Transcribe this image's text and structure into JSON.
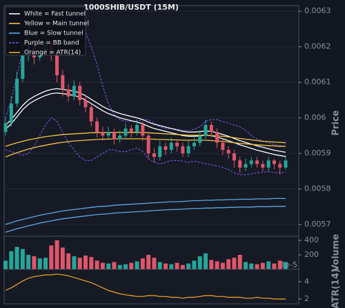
{
  "chart_data": [
    {
      "type": "candlestick",
      "title": "1000SHIB/USDT (15M)",
      "ylabel": "Price",
      "ylim": [
        0.005667,
        0.006316
      ],
      "yticks": [
        0.0057,
        0.0058,
        0.0059,
        0.006,
        0.0061,
        0.0062,
        0.0063
      ],
      "grid": true,
      "up_color": "#26a69a",
      "down_color": "#e0566a",
      "open": [
        0.00596,
        0.005985,
        0.00604,
        0.00611,
        0.00618,
        0.0062,
        0.00617,
        0.00619,
        0.00621,
        0.00618,
        0.00612,
        0.00608,
        0.00606,
        0.00609,
        0.00605,
        0.00603,
        0.00599,
        0.00596,
        0.00595,
        0.00596,
        0.00594,
        0.00595,
        0.00597,
        0.00596,
        0.00598,
        0.00595,
        0.0059,
        0.00589,
        0.00592,
        0.00591,
        0.00593,
        0.00592,
        0.0059,
        0.00592,
        0.00593,
        0.00595,
        0.00598,
        0.00596,
        0.00593,
        0.00591,
        0.0059,
        0.00588,
        0.00586,
        0.00587,
        0.00588,
        0.00587,
        0.00586,
        0.00588,
        0.00587,
        0.00586
      ],
      "high": [
        0.006,
        0.00606,
        0.00613,
        0.00621,
        0.00623,
        0.006215,
        0.006205,
        0.00624,
        0.00622,
        0.00619,
        0.006135,
        0.006095,
        0.006105,
        0.0061,
        0.006065,
        0.00604,
        0.006,
        0.005975,
        0.005975,
        0.00597,
        0.005965,
        0.005985,
        0.00598,
        0.005995,
        0.00599,
        0.00596,
        0.005915,
        0.005935,
        0.00593,
        0.005945,
        0.00594,
        0.00593,
        0.005935,
        0.005945,
        0.005965,
        0.005995,
        0.00599,
        0.00597,
        0.00594,
        0.00592,
        0.00591,
        0.00589,
        0.005885,
        0.00589,
        0.00589,
        0.00588,
        0.00589,
        0.005885,
        0.00588,
        0.005895
      ],
      "low": [
        0.00595,
        0.005975,
        0.00603,
        0.0061,
        0.00616,
        0.00615,
        0.00616,
        0.00618,
        0.00616,
        0.0061,
        0.00606,
        0.006045,
        0.00605,
        0.006035,
        0.006015,
        0.005975,
        0.005945,
        0.005935,
        0.00594,
        0.005925,
        0.00593,
        0.00594,
        0.005945,
        0.00595,
        0.005935,
        0.005885,
        0.005875,
        0.00588,
        0.005895,
        0.0059,
        0.005905,
        0.00589,
        0.00589,
        0.00591,
        0.00592,
        0.00594,
        0.005945,
        0.005915,
        0.005895,
        0.005885,
        0.00586,
        0.005845,
        0.00585,
        0.00586,
        0.00586,
        0.00585,
        0.00585,
        0.005855,
        0.00584,
        0.005855
      ],
      "close": [
        0.005985,
        0.00604,
        0.00611,
        0.00618,
        0.0062,
        0.00617,
        0.00619,
        0.00621,
        0.00618,
        0.00612,
        0.00608,
        0.00606,
        0.00609,
        0.00605,
        0.00603,
        0.00599,
        0.00596,
        0.00595,
        0.00596,
        0.00594,
        0.00595,
        0.00597,
        0.00596,
        0.00598,
        0.00595,
        0.0059,
        0.00589,
        0.00592,
        0.00591,
        0.00593,
        0.00592,
        0.0059,
        0.00592,
        0.00593,
        0.00595,
        0.00598,
        0.00596,
        0.00593,
        0.00591,
        0.0059,
        0.00588,
        0.00586,
        0.00587,
        0.00588,
        0.00587,
        0.00586,
        0.00588,
        0.00587,
        0.00586,
        0.00588
      ],
      "tunnels": [
        {
          "name": "White = Fast tunnel",
          "color": "#ffffff",
          "upper": [
            0.00598,
            0.005995,
            0.006015,
            0.006035,
            0.00605,
            0.00606,
            0.006068,
            0.006075,
            0.00608,
            0.006082,
            0.00608,
            0.006078,
            0.006075,
            0.00607,
            0.006062,
            0.006052,
            0.006042,
            0.006032,
            0.006024,
            0.006018,
            0.006012,
            0.006008,
            0.006004,
            0.006,
            0.005995,
            0.005988,
            0.005982,
            0.005978,
            0.005974,
            0.00597,
            0.005966,
            0.005962,
            0.00596,
            0.00596,
            0.005961,
            0.005963,
            0.005962,
            0.005958,
            0.005953,
            0.005948,
            0.005942,
            0.005936,
            0.005931,
            0.005926,
            0.005921,
            0.005917,
            0.005913,
            0.005909,
            0.005906,
            0.005903
          ],
          "lower": [
            0.005968,
            0.005983,
            0.006003,
            0.006023,
            0.006038,
            0.006048,
            0.006056,
            0.006063,
            0.006068,
            0.00607,
            0.006068,
            0.006066,
            0.006063,
            0.006058,
            0.00605,
            0.00604,
            0.00603,
            0.00602,
            0.006012,
            0.006006,
            0.006,
            0.005996,
            0.005992,
            0.005988,
            0.005983,
            0.005976,
            0.00597,
            0.005966,
            0.005962,
            0.005958,
            0.005954,
            0.00595,
            0.005948,
            0.005948,
            0.005949,
            0.005951,
            0.00595,
            0.005946,
            0.005941,
            0.005936,
            0.00593,
            0.005924,
            0.005919,
            0.005914,
            0.005909,
            0.005905,
            0.005901,
            0.005897,
            0.005894,
            0.005891
          ]
        },
        {
          "name": "Yellow = Main tunnel",
          "color": "#f5c542",
          "upper": [
            0.00592,
            0.005925,
            0.00593,
            0.005934,
            0.005938,
            0.005941,
            0.005944,
            0.005947,
            0.005949,
            0.005951,
            0.005953,
            0.005954,
            0.005955,
            0.005956,
            0.005957,
            0.005958,
            0.005958,
            0.005959,
            0.005959,
            0.005959,
            0.005959,
            0.005959,
            0.005959,
            0.005959,
            0.005959,
            0.005958,
            0.005957,
            0.005956,
            0.005955,
            0.005954,
            0.005953,
            0.005952,
            0.005951,
            0.005951,
            0.005951,
            0.005951,
            0.00595,
            0.005949,
            0.005948,
            0.005946,
            0.005944,
            0.005942,
            0.00594,
            0.005938,
            0.005936,
            0.005934,
            0.005933,
            0.005932,
            0.005931,
            0.00593
          ],
          "lower": [
            0.00589,
            0.005896,
            0.005902,
            0.005907,
            0.005912,
            0.005916,
            0.00592,
            0.005923,
            0.005926,
            0.005929,
            0.005931,
            0.005933,
            0.005935,
            0.005936,
            0.005937,
            0.005938,
            0.005939,
            0.00594,
            0.00594,
            0.005941,
            0.005941,
            0.005941,
            0.005941,
            0.005941,
            0.005941,
            0.00594,
            0.00594,
            0.005939,
            0.005939,
            0.005938,
            0.005938,
            0.005937,
            0.005937,
            0.005937,
            0.005937,
            0.005937,
            0.005936,
            0.005935,
            0.005934,
            0.005932,
            0.00593,
            0.005928,
            0.005927,
            0.005925,
            0.005924,
            0.005923,
            0.005922,
            0.005921,
            0.00592,
            0.00592
          ]
        },
        {
          "name": "Blue = Slow tunnel",
          "color": "#5aa9e6",
          "upper": [
            0.0057,
            0.005705,
            0.00571,
            0.005714,
            0.005718,
            0.005722,
            0.005726,
            0.005729,
            0.005732,
            0.005735,
            0.005738,
            0.00574,
            0.005742,
            0.005744,
            0.005746,
            0.005748,
            0.00575,
            0.005751,
            0.005752,
            0.005754,
            0.005755,
            0.005756,
            0.005757,
            0.005758,
            0.005759,
            0.00576,
            0.005761,
            0.005762,
            0.005763,
            0.005764,
            0.005764,
            0.005765,
            0.005766,
            0.005767,
            0.005767,
            0.005768,
            0.005768,
            0.005769,
            0.005769,
            0.00577,
            0.00577,
            0.005771,
            0.005771,
            0.005771,
            0.005772,
            0.005772,
            0.005772,
            0.005773,
            0.005773,
            0.005773
          ],
          "lower": [
            0.005678,
            0.005683,
            0.005688,
            0.005692,
            0.005696,
            0.0057,
            0.005704,
            0.005707,
            0.00571,
            0.005713,
            0.005716,
            0.005718,
            0.00572,
            0.005722,
            0.005724,
            0.005726,
            0.005728,
            0.005729,
            0.00573,
            0.005732,
            0.005733,
            0.005734,
            0.005735,
            0.005736,
            0.005737,
            0.005738,
            0.005739,
            0.00574,
            0.005741,
            0.005742,
            0.005742,
            0.005743,
            0.005744,
            0.005745,
            0.005745,
            0.005746,
            0.005746,
            0.005747,
            0.005747,
            0.005748,
            0.005748,
            0.005749,
            0.005749,
            0.005749,
            0.00575,
            0.00575,
            0.00575,
            0.005751,
            0.005751,
            0.005751
          ]
        }
      ],
      "bands": {
        "name": "Purple = BB band",
        "color": "#7b5cff",
        "dashed": true,
        "upper": [
          0.006,
          0.00605,
          0.00612,
          0.00619,
          0.00625,
          0.00629,
          0.0063,
          0.00631,
          0.00631,
          0.0063,
          0.00629,
          0.00628,
          0.00627,
          0.00626,
          0.00624,
          0.0062,
          0.00615,
          0.00609,
          0.00604,
          0.00601,
          0.005995,
          0.00599,
          0.00599,
          0.00599,
          0.005995,
          0.005995,
          0.005985,
          0.005975,
          0.00597,
          0.00597,
          0.005968,
          0.005965,
          0.005965,
          0.005968,
          0.005975,
          0.00599,
          0.005995,
          0.005995,
          0.00599,
          0.005985,
          0.00598,
          0.005975,
          0.005965,
          0.00595,
          0.00594,
          0.005935,
          0.00593,
          0.005925,
          0.005922,
          0.00592
        ],
        "lower": [
          0.00591,
          0.005905,
          0.0059,
          0.005895,
          0.0059,
          0.00592,
          0.00595,
          0.00598,
          0.006,
          0.00599,
          0.00596,
          0.00593,
          0.00591,
          0.00589,
          0.00588,
          0.00588,
          0.00589,
          0.0059,
          0.00591,
          0.00591,
          0.005905,
          0.005905,
          0.00591,
          0.005915,
          0.005905,
          0.005885,
          0.005875,
          0.00587,
          0.005875,
          0.00588,
          0.00588,
          0.005878,
          0.005875,
          0.005878,
          0.005875,
          0.00587,
          0.005868,
          0.005865,
          0.00586,
          0.005855,
          0.005845,
          0.00584,
          0.00584,
          0.005842,
          0.005845,
          0.005848,
          0.005848,
          0.005846,
          0.005845,
          0.005848
        ]
      }
    },
    {
      "type": "bar",
      "ylabel": "Volume",
      "ylim": [
        0,
        457
      ],
      "yticks": [
        200,
        400
      ],
      "values": [
        120,
        250,
        310,
        280,
        200,
        180,
        150,
        160,
        330,
        400,
        300,
        220,
        180,
        160,
        190,
        170,
        120,
        90,
        80,
        100,
        60,
        70,
        90,
        110,
        150,
        200,
        160,
        100,
        80,
        70,
        90,
        60,
        80,
        120,
        180,
        220,
        130,
        110,
        90,
        140,
        160,
        200,
        100,
        80,
        70,
        90,
        110,
        80,
        120,
        100
      ]
    },
    {
      "type": "line",
      "ylabel": "ATR(14)",
      "name": "Orange = ATR(14)",
      "color": "#f5a623",
      "offset_text": "1e-5",
      "ylim": [
        1.44,
        5.44
      ],
      "yticks": [
        2,
        4
      ],
      "values": [
        3.0,
        3.3,
        3.7,
        4.1,
        4.4,
        4.6,
        4.7,
        4.8,
        4.8,
        4.9,
        4.8,
        4.7,
        4.5,
        4.3,
        4.1,
        3.9,
        3.6,
        3.3,
        3.0,
        2.8,
        2.6,
        2.5,
        2.4,
        2.3,
        2.3,
        2.4,
        2.4,
        2.3,
        2.3,
        2.2,
        2.2,
        2.1,
        2.2,
        2.2,
        2.3,
        2.4,
        2.4,
        2.3,
        2.3,
        2.2,
        2.2,
        2.2,
        2.1,
        2.1,
        2.2,
        2.1,
        2.1,
        2.0,
        2.0,
        2.0
      ]
    }
  ]
}
